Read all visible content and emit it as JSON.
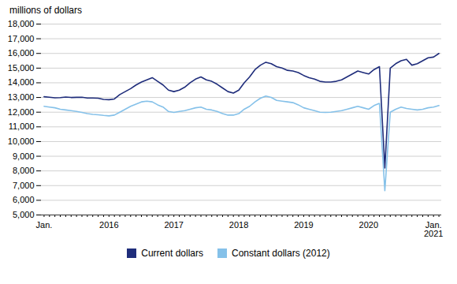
{
  "chart_data": {
    "type": "line",
    "title": "millions of dollars",
    "categories": [
      "Jan.",
      null,
      null,
      null,
      null,
      null,
      null,
      null,
      null,
      null,
      null,
      null,
      "2016",
      null,
      null,
      null,
      null,
      null,
      null,
      null,
      null,
      null,
      null,
      null,
      "2017",
      null,
      null,
      null,
      null,
      null,
      null,
      null,
      null,
      null,
      null,
      null,
      "2018",
      null,
      null,
      null,
      null,
      null,
      null,
      null,
      null,
      null,
      null,
      null,
      "2019",
      null,
      null,
      null,
      null,
      null,
      null,
      null,
      null,
      null,
      null,
      null,
      "2020",
      null,
      null,
      null,
      null,
      null,
      null,
      null,
      null,
      null,
      null,
      null,
      "Jan.\n2021",
      null
    ],
    "series": [
      {
        "name": "Current dollars",
        "color": "#1f2d7b",
        "values": [
          13050,
          13020,
          12980,
          12990,
          13030,
          13000,
          13010,
          13020,
          12960,
          12960,
          12950,
          12870,
          12850,
          12900,
          13200,
          13400,
          13600,
          13850,
          14050,
          14200,
          14350,
          14100,
          13850,
          13500,
          13400,
          13500,
          13700,
          14000,
          14250,
          14400,
          14200,
          14100,
          13900,
          13650,
          13400,
          13300,
          13500,
          14000,
          14400,
          14900,
          15200,
          15400,
          15300,
          15100,
          15000,
          14850,
          14800,
          14700,
          14500,
          14350,
          14250,
          14100,
          14050,
          14050,
          14100,
          14200,
          14400,
          14600,
          14800,
          14700,
          14600,
          14900,
          15100,
          8200,
          15000,
          15300,
          15500,
          15600,
          15200,
          15300,
          15500,
          15700,
          15750,
          16000
        ]
      },
      {
        "name": "Constant dollars (2012)",
        "color": "#85c1e9",
        "values": [
          12400,
          12350,
          12300,
          12200,
          12150,
          12100,
          12050,
          11980,
          11900,
          11850,
          11820,
          11780,
          11750,
          11800,
          12000,
          12200,
          12400,
          12550,
          12700,
          12750,
          12700,
          12500,
          12350,
          12050,
          11980,
          12050,
          12100,
          12200,
          12300,
          12350,
          12200,
          12150,
          12050,
          11900,
          11800,
          11800,
          11900,
          12200,
          12400,
          12700,
          12950,
          13100,
          13000,
          12800,
          12750,
          12700,
          12650,
          12500,
          12300,
          12200,
          12100,
          12000,
          11980,
          12000,
          12050,
          12100,
          12200,
          12300,
          12400,
          12300,
          12200,
          12450,
          12600,
          6650,
          12000,
          12200,
          12350,
          12250,
          12200,
          12150,
          12200,
          12300,
          12350,
          12450
        ]
      }
    ],
    "ylim": [
      5000,
      18000
    ],
    "yticks": [
      {
        "value": 5000,
        "label": "5,000"
      },
      {
        "value": 6000,
        "label": "6,000"
      },
      {
        "value": 7000,
        "label": "7,000"
      },
      {
        "value": 8000,
        "label": "8,000"
      },
      {
        "value": 9000,
        "label": "9,000"
      },
      {
        "value": 10000,
        "label": "10,000"
      },
      {
        "value": 11000,
        "label": "11,000"
      },
      {
        "value": 12000,
        "label": "12,000"
      },
      {
        "value": 13000,
        "label": "13,000"
      },
      {
        "value": 14000,
        "label": "14,000"
      },
      {
        "value": 15000,
        "label": "15,000"
      },
      {
        "value": 16000,
        "label": "16,000"
      },
      {
        "value": 17000,
        "label": "17,000"
      },
      {
        "value": 18000,
        "label": "18,000"
      }
    ],
    "grid": true,
    "legend": "bottom"
  }
}
